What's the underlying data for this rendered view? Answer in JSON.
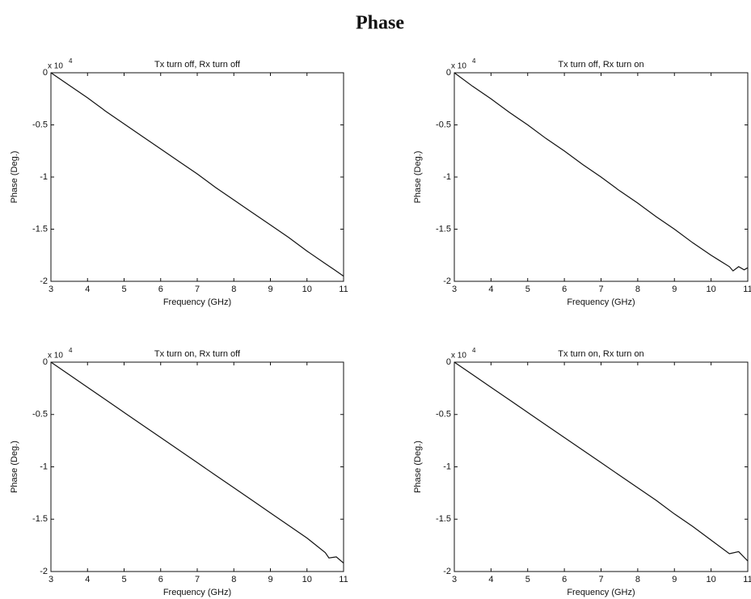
{
  "title": "Phase",
  "chart_data": [
    {
      "type": "line",
      "title": "Tx turn off, Rx turn off",
      "x_label": "Frequency (GHz)",
      "y_label": "Phase (Deg.)",
      "y_multiplier": "x 10",
      "y_multiplier_exponent": "4",
      "color": "#111111",
      "x": [
        3,
        3.5,
        4,
        4.5,
        5,
        5.5,
        6,
        6.5,
        7,
        7.5,
        8,
        8.5,
        9,
        9.5,
        10,
        10.5,
        10.75,
        11
      ],
      "values": [
        0,
        -0.12,
        -0.24,
        -0.37,
        -0.49,
        -0.61,
        -0.73,
        -0.85,
        -0.97,
        -1.1,
        -1.22,
        -1.34,
        -1.46,
        -1.58,
        -1.71,
        -1.83,
        -1.89,
        -1.95
      ],
      "xlim": [
        3,
        11
      ],
      "ylim": [
        -2,
        0
      ],
      "xticks": [
        3,
        4,
        5,
        6,
        7,
        8,
        9,
        10,
        11
      ],
      "yticks": [
        -2,
        -1.5,
        -1,
        -0.5,
        0
      ]
    },
    {
      "type": "line",
      "title": "Tx turn off, Rx turn on",
      "x_label": "Frequency (GHz)",
      "y_label": "Phase (Deg.)",
      "y_multiplier": "x 10",
      "y_multiplier_exponent": "4",
      "color": "#111111",
      "x": [
        3,
        3.5,
        4,
        4.5,
        5,
        5.5,
        6,
        6.5,
        7,
        7.5,
        8,
        8.5,
        9,
        9.5,
        10,
        10.5,
        10.6,
        10.75,
        10.9,
        11
      ],
      "values": [
        0,
        -0.13,
        -0.25,
        -0.38,
        -0.5,
        -0.63,
        -0.75,
        -0.88,
        -1.0,
        -1.13,
        -1.25,
        -1.38,
        -1.5,
        -1.63,
        -1.75,
        -1.86,
        -1.9,
        -1.86,
        -1.89,
        -1.87
      ],
      "xlim": [
        3,
        11
      ],
      "ylim": [
        -2,
        0
      ],
      "xticks": [
        3,
        4,
        5,
        6,
        7,
        8,
        9,
        10,
        11
      ],
      "yticks": [
        -2,
        -1.5,
        -1,
        -0.5,
        0
      ]
    },
    {
      "type": "line",
      "title": "Tx turn on, Rx turn off",
      "x_label": "Frequency (GHz)",
      "y_label": "Phase (Deg.)",
      "y_multiplier": "x 10",
      "y_multiplier_exponent": "4",
      "color": "#111111",
      "x": [
        3,
        3.5,
        4,
        4.5,
        5,
        5.5,
        6,
        6.5,
        7,
        7.5,
        8,
        8.5,
        9,
        9.5,
        10,
        10.5,
        10.6,
        10.8,
        11
      ],
      "values": [
        0,
        -0.12,
        -0.24,
        -0.36,
        -0.48,
        -0.6,
        -0.72,
        -0.84,
        -0.96,
        -1.08,
        -1.2,
        -1.32,
        -1.44,
        -1.56,
        -1.68,
        -1.82,
        -1.87,
        -1.86,
        -1.92
      ],
      "xlim": [
        3,
        11
      ],
      "ylim": [
        -2,
        0
      ],
      "xticks": [
        3,
        4,
        5,
        6,
        7,
        8,
        9,
        10,
        11
      ],
      "yticks": [
        -2,
        -1.5,
        -1,
        -0.5,
        0
      ]
    },
    {
      "type": "line",
      "title": "Tx turn on, Rx turn on",
      "x_label": "Frequency (GHz)",
      "y_label": "Phase (Deg.)",
      "y_multiplier": "x 10",
      "y_multiplier_exponent": "4",
      "color": "#111111",
      "x": [
        3,
        3.5,
        4,
        4.5,
        5,
        5.5,
        6,
        6.5,
        7,
        7.5,
        8,
        8.5,
        9,
        9.5,
        10,
        10.5,
        10.75,
        11
      ],
      "values": [
        0,
        -0.12,
        -0.24,
        -0.36,
        -0.48,
        -0.6,
        -0.72,
        -0.84,
        -0.96,
        -1.08,
        -1.2,
        -1.32,
        -1.45,
        -1.57,
        -1.7,
        -1.83,
        -1.81,
        -1.9
      ],
      "xlim": [
        3,
        11
      ],
      "ylim": [
        -2,
        0
      ],
      "xticks": [
        3,
        4,
        5,
        6,
        7,
        8,
        9,
        10,
        11
      ],
      "yticks": [
        -2,
        -1.5,
        -1,
        -0.5,
        0
      ]
    }
  ]
}
